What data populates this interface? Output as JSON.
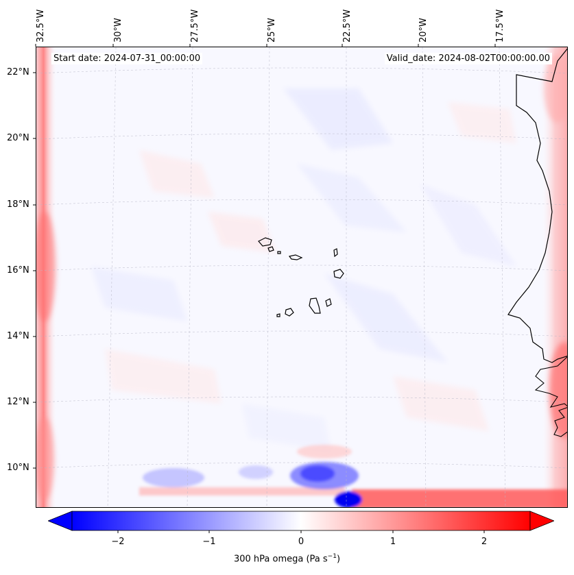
{
  "title_left": "Start date: 2024-07-31_00:00:00",
  "title_right": "Valid_date: 2024-08-02T00:00:00.00",
  "lon_labels": [
    "32.5°W",
    "30°W",
    "27.5°W",
    "25°W",
    "22.5°W",
    "20°W",
    "17.5°W"
  ],
  "lat_labels": [
    "22°N",
    "20°N",
    "18°N",
    "16°N",
    "14°N",
    "12°N",
    "10°N"
  ],
  "colorbar": {
    "label_text": "300 hPa omega (Pa s",
    "label_exp": "−1",
    "label_close": ")",
    "tick_labels": [
      "−2",
      "−1",
      "0",
      "1",
      "2"
    ],
    "tick_values": [
      -2,
      -1,
      0,
      1,
      2
    ],
    "range": [
      -2.5,
      2.5
    ],
    "extend": "both",
    "colormap": "bwr",
    "color_low": "#0000ff",
    "color_mid": "#ffffff",
    "color_high": "#ff0000"
  },
  "map": {
    "projection": "lambert-conformal",
    "extent_lon": [
      -33,
      -16
    ],
    "extent_lat": [
      9,
      22.7
    ],
    "features": [
      "cape-verde-islands",
      "west-africa-coastline"
    ],
    "field": "300 hPa omega",
    "units": "Pa s-1"
  }
}
